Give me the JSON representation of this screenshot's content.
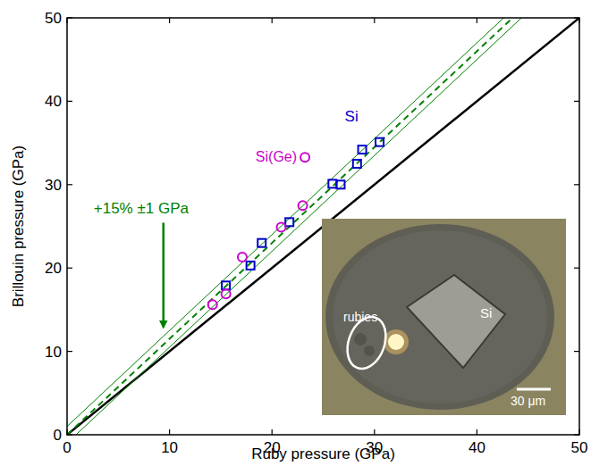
{
  "chart_data": {
    "type": "scatter",
    "x_label": "Ruby pressure (GPa)",
    "y_label": "Brillouin pressure (GPa)",
    "xlim": [
      0,
      50
    ],
    "ylim": [
      0,
      50
    ],
    "xticks": [
      0,
      10,
      20,
      30,
      40,
      50
    ],
    "yticks": [
      0,
      10,
      20,
      30,
      40,
      50
    ],
    "grid": false,
    "legend": "center",
    "series": [
      {
        "name": "Si",
        "color": "#0000cc",
        "marker": "square",
        "x": [
          15.5,
          17.9,
          19.0,
          21.7,
          25.9,
          26.7,
          28.3,
          28.8,
          30.5
        ],
        "values": [
          17.9,
          20.3,
          23.0,
          25.5,
          30.1,
          30.0,
          32.5,
          34.2,
          35.1
        ]
      },
      {
        "name": "Si(Ge)",
        "color": "#cc00cc",
        "marker": "circle",
        "x": [
          14.2,
          15.5,
          17.1,
          20.9,
          23.0
        ],
        "values": [
          15.6,
          16.9,
          21.3,
          24.9,
          27.5
        ]
      }
    ],
    "reference": {
      "slope": 1,
      "color": "#000000"
    },
    "fit": {
      "slope": 1.15,
      "band": 1,
      "color": "#008000",
      "label": "+15% ±1 GPa"
    },
    "inset": {
      "rubies": "rubies",
      "sample": "Si",
      "scale": "30 μm"
    }
  }
}
